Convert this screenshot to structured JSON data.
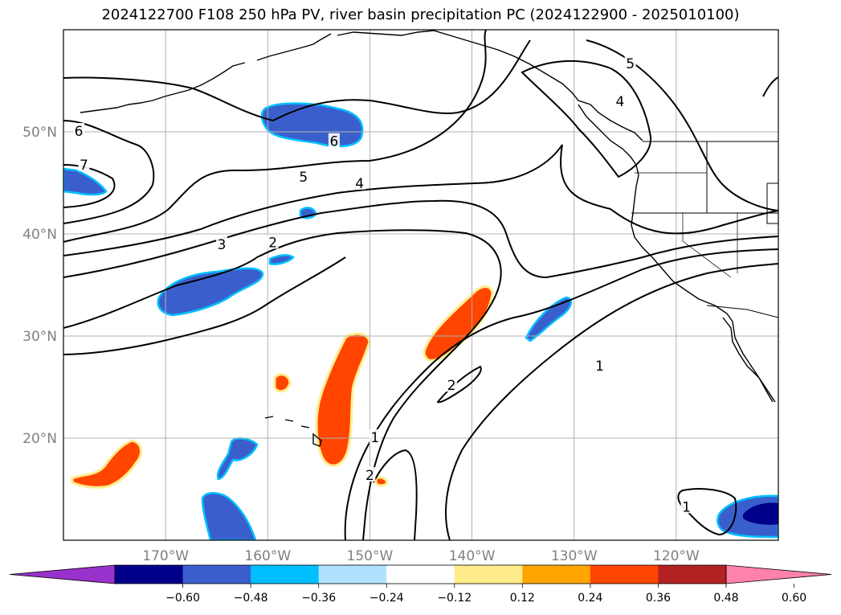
{
  "title": "2024122700 F108 250 hPa PV, river basin precipitation PC (2024122900 - 2025010100)",
  "map": {
    "lon_range": [
      180,
      -110
    ],
    "lat_range": [
      10,
      60
    ],
    "lat_labels": [
      {
        "lat": 50,
        "text": "50°N"
      },
      {
        "lat": 40,
        "text": "40°N"
      },
      {
        "lat": 30,
        "text": "30°N"
      },
      {
        "lat": 20,
        "text": "20°N"
      }
    ],
    "lon_labels": [
      {
        "lon": -170,
        "text": "170°W"
      },
      {
        "lon": -160,
        "text": "160°W"
      },
      {
        "lon": -150,
        "text": "150°W"
      },
      {
        "lon": -140,
        "text": "140°W"
      },
      {
        "lon": -130,
        "text": "130°W"
      },
      {
        "lon": -120,
        "text": "120°W"
      }
    ],
    "contour_labels": [
      {
        "text": "6",
        "lon": -178.5,
        "lat": 50.0
      },
      {
        "text": "7",
        "lon": -178.0,
        "lat": 46.7
      },
      {
        "text": "5",
        "lon": -156.5,
        "lat": 45.5
      },
      {
        "text": "4",
        "lon": -151.0,
        "lat": 44.9
      },
      {
        "text": "6",
        "lon": -153.5,
        "lat": 49.0
      },
      {
        "text": "3",
        "lon": -164.5,
        "lat": 38.9
      },
      {
        "text": "2",
        "lon": -159.5,
        "lat": 39.1
      },
      {
        "text": "2",
        "lon": -142.0,
        "lat": 25.1
      },
      {
        "text": "1",
        "lon": -127.5,
        "lat": 27.0
      },
      {
        "text": "1",
        "lon": -149.5,
        "lat": 20.0
      },
      {
        "text": "2",
        "lon": -150.0,
        "lat": 16.3
      },
      {
        "text": "1",
        "lon": -119.0,
        "lat": 13.2
      },
      {
        "text": "4",
        "lon": -125.5,
        "lat": 52.9
      },
      {
        "text": "5",
        "lon": -124.5,
        "lat": 56.6
      }
    ]
  },
  "colorbar": {
    "colors": [
      "#9932cc",
      "#00008b",
      "#3a5fcd",
      "#00bfff",
      "#b0e2ff",
      "#ffffff",
      "#ffec8b",
      "#ffa500",
      "#ff4500",
      "#b22222",
      "#ff82ab"
    ],
    "ticks": [
      "−0.60",
      "−0.48",
      "−0.36",
      "−0.24",
      "−0.12",
      "0.12",
      "0.24",
      "0.36",
      "0.48",
      "0.60"
    ]
  },
  "colors": {
    "negative_fill": "#3a5fcd",
    "negative_edge": "#00bfff",
    "negative_strong": "#00008b",
    "positive_fill": "#ff4500",
    "positive_edge": "#ffec8b",
    "contour": "#000000",
    "grid": "#b0b0b0",
    "coast": "#000000"
  }
}
